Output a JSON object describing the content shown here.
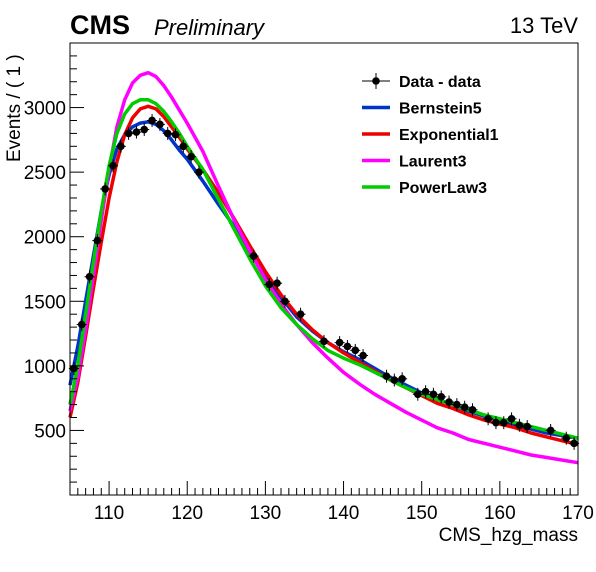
{
  "header": {
    "experiment": "CMS",
    "status": "Preliminary",
    "energy": "13 TeV"
  },
  "chart_data": {
    "type": "scatter",
    "xlabel": "CMS_hzg_mass",
    "ylabel": "Events / ( 1 )",
    "xlim": [
      105,
      170
    ],
    "ylim": [
      0,
      3500
    ],
    "x_ticks": [
      110,
      120,
      130,
      140,
      150,
      160,
      170
    ],
    "y_ticks": [
      500,
      1000,
      1500,
      2000,
      2500,
      3000
    ],
    "grid": false,
    "legend_position": "top-right",
    "legend": [
      {
        "label": "Data - data",
        "kind": "marker",
        "color": "#000000"
      },
      {
        "label": "Bernstein5",
        "kind": "line",
        "color": "#0033cc"
      },
      {
        "label": "Exponential1",
        "kind": "line",
        "color": "#ee0000"
      },
      {
        "label": "Laurent3",
        "kind": "line",
        "color": "#ff00ff"
      },
      {
        "label": "PowerLaw3",
        "kind": "line",
        "color": "#00cc00"
      }
    ],
    "data": {
      "name": "Data - data",
      "x": [
        105.5,
        106.5,
        107.5,
        108.5,
        109.5,
        110.5,
        111.5,
        112.5,
        113.5,
        114.5,
        115.5,
        116.5,
        117.5,
        118.5,
        119.5,
        120.5,
        121.5,
        128.5,
        130.5,
        131.5,
        132.5,
        134.5,
        137.5,
        139.5,
        140.5,
        141.5,
        142.5,
        145.5,
        146.5,
        147.5,
        149.5,
        150.5,
        151.5,
        152.5,
        153.5,
        154.5,
        155.5,
        156.5,
        158.5,
        159.5,
        160.5,
        161.5,
        162.5,
        163.5,
        166.5,
        168.5,
        169.5
      ],
      "y": [
        980,
        1320,
        1690,
        1970,
        2370,
        2550,
        2700,
        2800,
        2810,
        2830,
        2900,
        2870,
        2800,
        2790,
        2700,
        2620,
        2500,
        1850,
        1630,
        1640,
        1500,
        1400,
        1190,
        1180,
        1150,
        1120,
        1080,
        920,
        890,
        900,
        780,
        800,
        780,
        760,
        720,
        700,
        680,
        660,
        590,
        560,
        560,
        590,
        540,
        530,
        500,
        440,
        400
      ],
      "yerr": 50
    },
    "series": [
      {
        "name": "Bernstein5",
        "color": "#0033cc",
        "x": [
          105,
          106,
          107,
          108,
          109,
          110,
          111,
          112,
          113,
          114,
          115,
          116,
          117,
          118,
          119,
          120,
          122,
          124,
          126,
          128,
          130,
          132,
          134,
          136,
          138,
          140,
          142,
          144,
          146,
          148,
          150,
          152,
          154,
          156,
          158,
          160,
          162,
          164,
          166,
          168,
          170
        ],
        "y": [
          850,
          1150,
          1500,
          1850,
          2200,
          2480,
          2680,
          2790,
          2850,
          2880,
          2890,
          2870,
          2820,
          2750,
          2670,
          2600,
          2430,
          2250,
          2080,
          1880,
          1700,
          1530,
          1380,
          1270,
          1180,
          1110,
          1050,
          980,
          910,
          850,
          790,
          740,
          700,
          650,
          610,
          580,
          540,
          510,
          480,
          460,
          440
        ]
      },
      {
        "name": "Exponential1",
        "color": "#ee0000",
        "x": [
          105,
          106,
          107,
          108,
          109,
          110,
          111,
          112,
          113,
          114,
          115,
          116,
          117,
          118,
          119,
          120,
          122,
          124,
          126,
          128,
          130,
          132,
          134,
          136,
          138,
          140,
          142,
          144,
          146,
          148,
          150,
          152,
          154,
          156,
          158,
          160,
          162,
          164,
          166,
          168,
          170
        ],
        "y": [
          600,
          870,
          1230,
          1600,
          1960,
          2300,
          2580,
          2790,
          2920,
          2990,
          3010,
          2990,
          2930,
          2850,
          2770,
          2680,
          2520,
          2340,
          2140,
          1930,
          1730,
          1550,
          1400,
          1280,
          1180,
          1100,
          1030,
          960,
          890,
          830,
          770,
          710,
          670,
          620,
          580,
          550,
          520,
          480,
          450,
          420,
          390
        ]
      },
      {
        "name": "Laurent3",
        "color": "#ff00ff",
        "x": [
          105,
          106,
          107,
          108,
          109,
          110,
          111,
          112,
          113,
          114,
          115,
          116,
          117,
          118,
          119,
          120,
          122,
          124,
          126,
          128,
          130,
          132,
          134,
          136,
          138,
          140,
          142,
          144,
          146,
          148,
          150,
          152,
          154,
          156,
          158,
          160,
          162,
          164,
          166,
          168,
          170
        ],
        "y": [
          650,
          910,
          1280,
          1700,
          2130,
          2520,
          2850,
          3060,
          3190,
          3250,
          3270,
          3240,
          3170,
          3080,
          2980,
          2880,
          2660,
          2390,
          2130,
          1890,
          1670,
          1480,
          1320,
          1180,
          1060,
          950,
          860,
          780,
          710,
          640,
          580,
          520,
          480,
          430,
          400,
          370,
          340,
          310,
          290,
          270,
          250
        ]
      },
      {
        "name": "PowerLaw3",
        "color": "#00cc00",
        "x": [
          105,
          106,
          107,
          108,
          109,
          110,
          111,
          112,
          113,
          114,
          115,
          116,
          117,
          118,
          119,
          120,
          122,
          124,
          126,
          128,
          130,
          132,
          134,
          136,
          138,
          140,
          142,
          144,
          146,
          148,
          150,
          152,
          154,
          156,
          158,
          160,
          162,
          164,
          166,
          168,
          170
        ],
        "y": [
          700,
          1000,
          1400,
          1800,
          2200,
          2550,
          2800,
          2950,
          3030,
          3060,
          3060,
          3030,
          2970,
          2890,
          2800,
          2700,
          2520,
          2290,
          2060,
          1830,
          1620,
          1450,
          1320,
          1210,
          1120,
          1060,
          1010,
          950,
          890,
          830,
          780,
          740,
          700,
          660,
          620,
          590,
          560,
          530,
          500,
          470,
          440
        ]
      }
    ]
  }
}
